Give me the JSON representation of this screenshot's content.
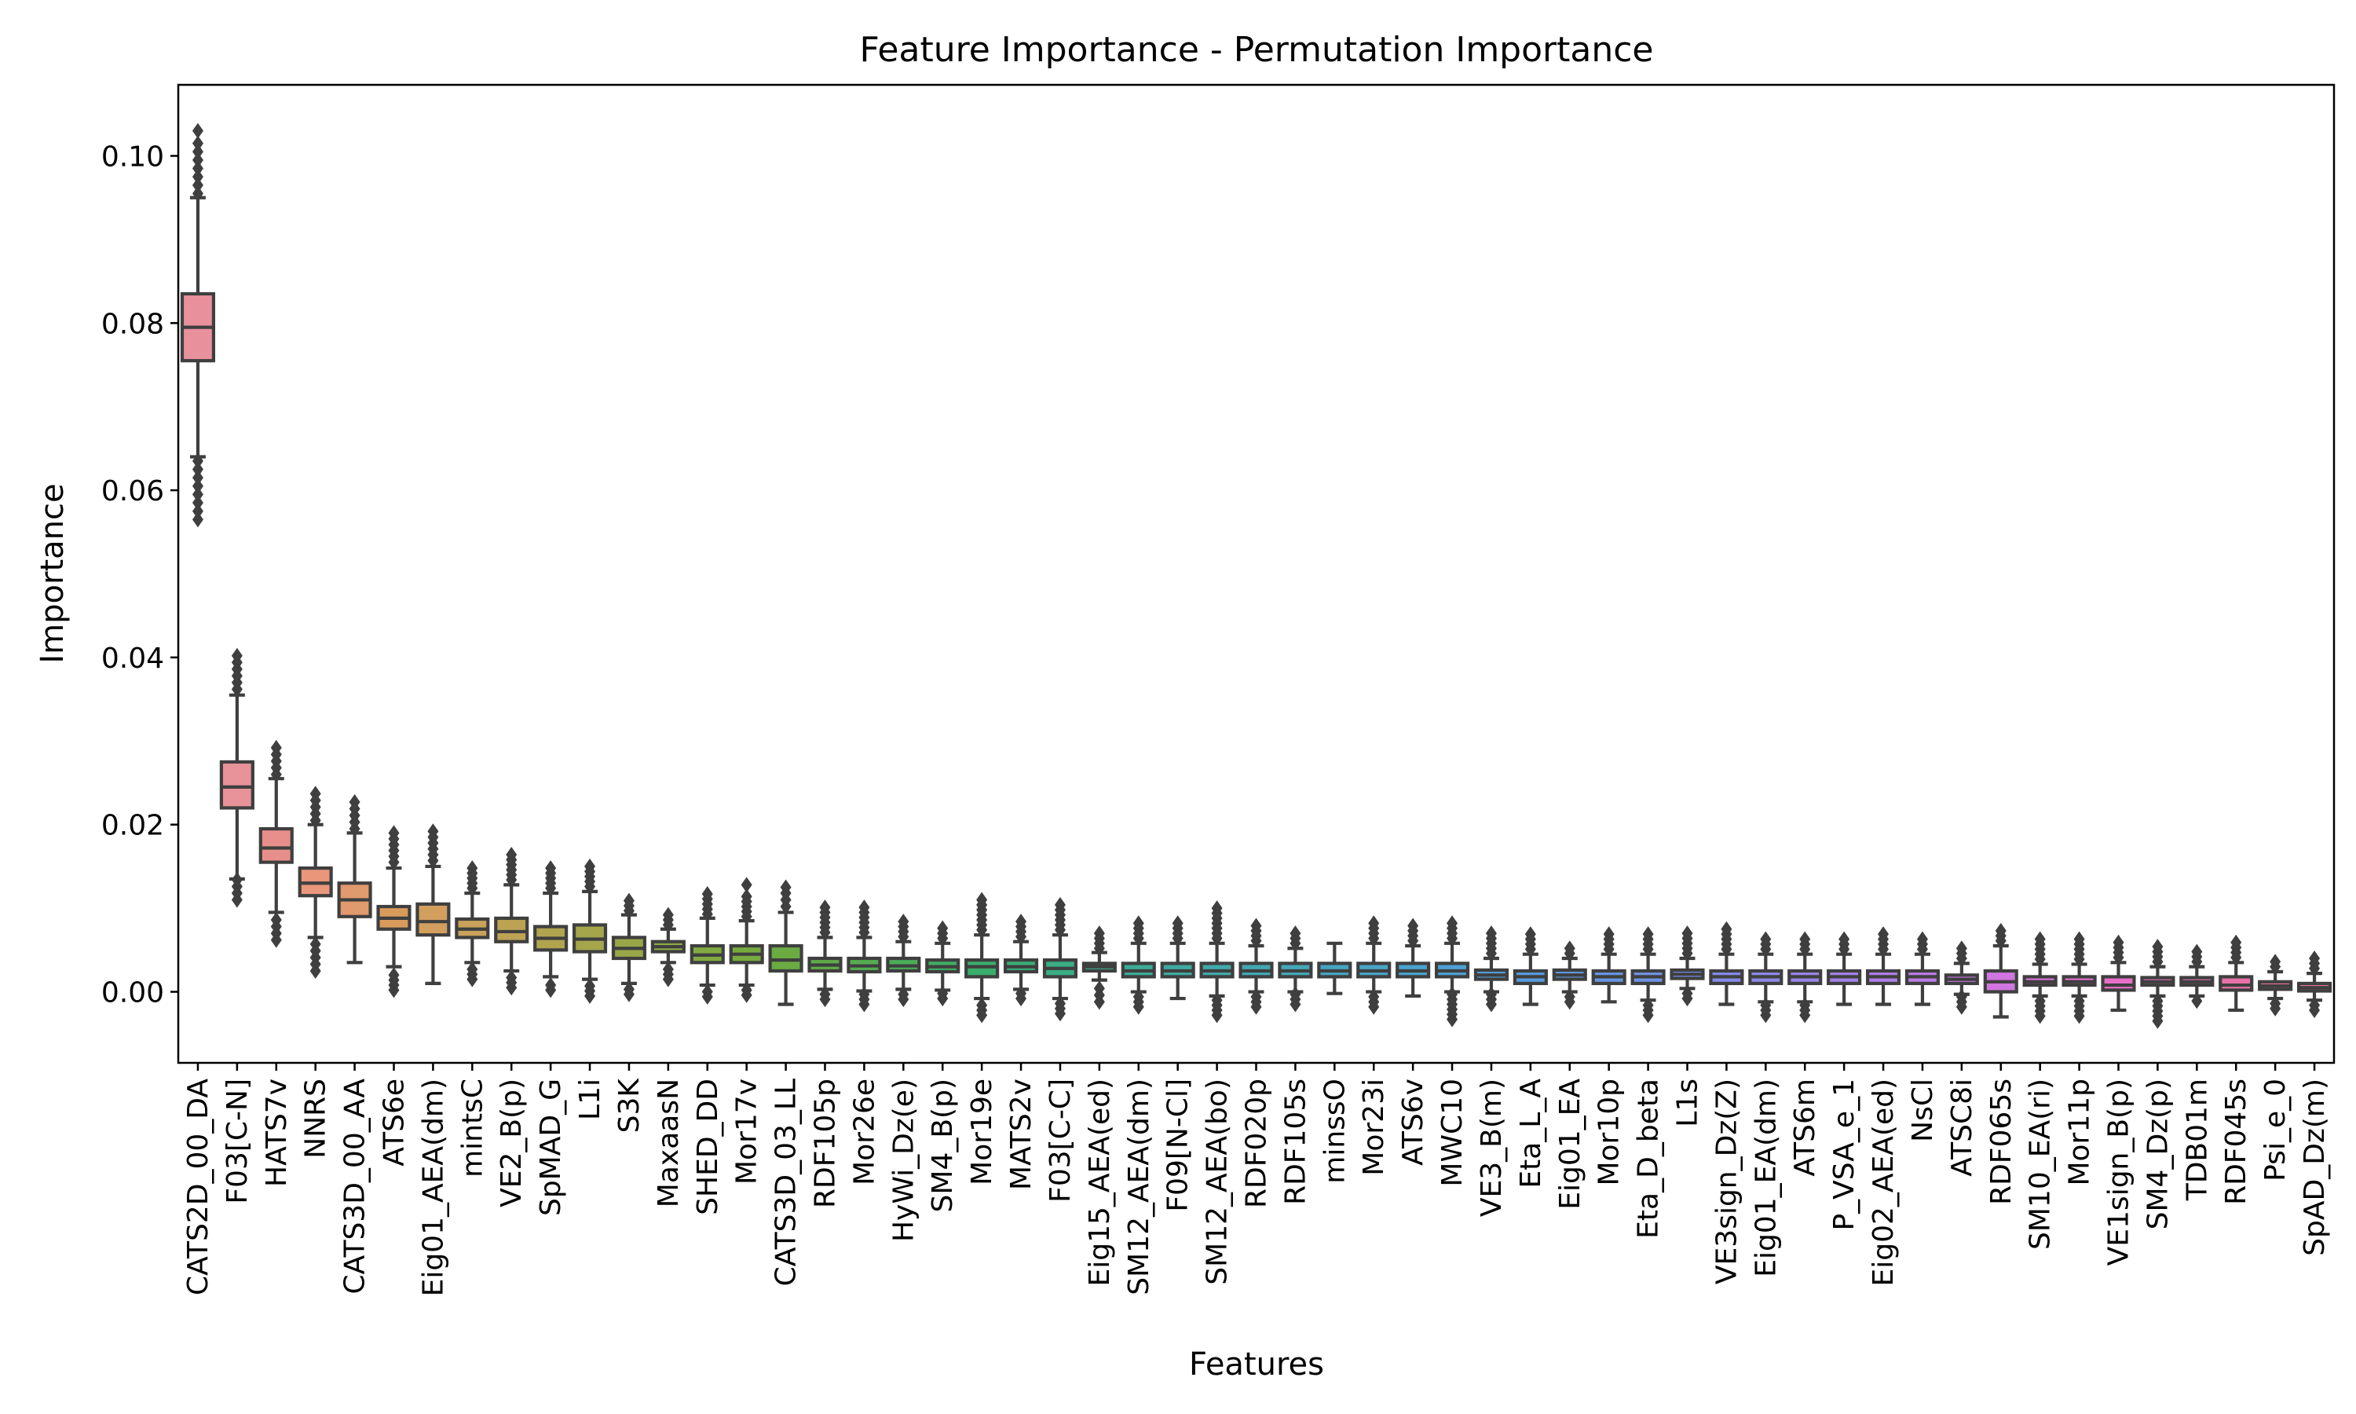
{
  "chart_data": {
    "type": "box",
    "title": "Feature Importance - Permutation Importance",
    "xlabel": "Features",
    "ylabel": "Importance",
    "ylim": [
      -0.0085,
      0.1085
    ],
    "yticks": [
      0.0,
      0.02,
      0.04,
      0.06,
      0.08,
      0.1
    ],
    "ytick_labels": [
      "0.00",
      "0.02",
      "0.04",
      "0.06",
      "0.08",
      "0.10"
    ],
    "grid": false,
    "features": [
      {
        "name": "CATS2D_00_DA",
        "q1": 0.0755,
        "median": 0.0795,
        "q3": 0.0835,
        "whislo": 0.064,
        "whishi": 0.095,
        "fliers": [
          0.0565,
          0.0575,
          0.0585,
          0.0595,
          0.0605,
          0.0615,
          0.0625,
          0.0635,
          0.0955,
          0.0965,
          0.0975,
          0.0985,
          0.0995,
          0.1005,
          0.1015,
          0.103
        ],
        "color": "#e8919c"
      },
      {
        "name": "F03[C-N]",
        "q1": 0.022,
        "median": 0.0245,
        "q3": 0.0275,
        "whislo": 0.0135,
        "whishi": 0.0355,
        "fliers": [
          0.011,
          0.0118,
          0.0126,
          0.0134,
          0.0362,
          0.037,
          0.0378,
          0.0386,
          0.0394,
          0.0402
        ],
        "color": "#e8929a"
      },
      {
        "name": "HATS7v",
        "q1": 0.0155,
        "median": 0.0172,
        "q3": 0.0195,
        "whislo": 0.0095,
        "whishi": 0.0255,
        "fliers": [
          0.0062,
          0.007,
          0.0078,
          0.0086,
          0.026,
          0.0268,
          0.0276,
          0.0284,
          0.0292
        ],
        "color": "#e98f8b"
      },
      {
        "name": "NNRS",
        "q1": 0.0115,
        "median": 0.013,
        "q3": 0.0148,
        "whislo": 0.0065,
        "whishi": 0.02,
        "fliers": [
          0.0025,
          0.0033,
          0.0041,
          0.0049,
          0.0057,
          0.0205,
          0.0213,
          0.0221,
          0.0229,
          0.0237
        ],
        "color": "#e9967a"
      },
      {
        "name": "CATS3D_00_AA",
        "q1": 0.009,
        "median": 0.011,
        "q3": 0.013,
        "whislo": 0.0035,
        "whishi": 0.019,
        "fliers": [
          0.0195,
          0.0203,
          0.0211,
          0.0219,
          0.0227
        ],
        "color": "#e19a6d"
      },
      {
        "name": "ATS6e",
        "q1": 0.0075,
        "median": 0.0088,
        "q3": 0.0102,
        "whislo": 0.003,
        "whishi": 0.0148,
        "fliers": [
          0.0002,
          0.0008,
          0.0014,
          0.002,
          0.0155,
          0.0162,
          0.0169,
          0.0176,
          0.0183,
          0.019
        ],
        "color": "#d99b5c"
      },
      {
        "name": "Eig01_AEA(dm)",
        "q1": 0.0068,
        "median": 0.0084,
        "q3": 0.0105,
        "whislo": 0.001,
        "whishi": 0.015,
        "fliers": [
          0.0157,
          0.0164,
          0.0171,
          0.0178,
          0.0185,
          0.0192
        ],
        "color": "#d29f5e"
      },
      {
        "name": "mintsC",
        "q1": 0.0065,
        "median": 0.0075,
        "q3": 0.0087,
        "whislo": 0.0035,
        "whishi": 0.0118,
        "fliers": [
          0.0015,
          0.0021,
          0.0027,
          0.0124,
          0.013,
          0.0136,
          0.0142,
          0.0148
        ],
        "color": "#c8a15a"
      },
      {
        "name": "VE2_B(p)",
        "q1": 0.006,
        "median": 0.0072,
        "q3": 0.0088,
        "whislo": 0.0025,
        "whishi": 0.0128,
        "fliers": [
          0.0005,
          0.0011,
          0.0017,
          0.0134,
          0.014,
          0.0146,
          0.0152,
          0.0158,
          0.0164
        ],
        "color": "#bca354"
      },
      {
        "name": "SpMAD_G",
        "q1": 0.005,
        "median": 0.0064,
        "q3": 0.0078,
        "whislo": 0.0018,
        "whishi": 0.0118,
        "fliers": [
          0.0002,
          0.0008,
          0.0124,
          0.013,
          0.0136,
          0.0142,
          0.0148
        ],
        "color": "#b1a44f"
      },
      {
        "name": "L1i",
        "q1": 0.0048,
        "median": 0.0063,
        "q3": 0.008,
        "whislo": 0.0015,
        "whishi": 0.012,
        "fliers": [
          -0.0005,
          0.0001,
          0.0007,
          0.0126,
          0.0132,
          0.0138,
          0.0144,
          0.015
        ],
        "color": "#a5a64b"
      },
      {
        "name": "S3K",
        "q1": 0.004,
        "median": 0.0052,
        "q3": 0.0065,
        "whislo": 0.001,
        "whishi": 0.0092,
        "fliers": [
          -0.0003,
          0.0003,
          0.0097,
          0.0103,
          0.0109
        ],
        "color": "#9aa748"
      },
      {
        "name": "MaxaasN",
        "q1": 0.0048,
        "median": 0.0054,
        "q3": 0.006,
        "whislo": 0.0035,
        "whishi": 0.0075,
        "fliers": [
          0.0015,
          0.0021,
          0.0027,
          0.008,
          0.0086,
          0.0092
        ],
        "color": "#8ea945"
      },
      {
        "name": "SHED_DD",
        "q1": 0.0035,
        "median": 0.0044,
        "q3": 0.0055,
        "whislo": 0.0008,
        "whishi": 0.0088,
        "fliers": [
          -0.0006,
          0.0,
          0.0093,
          0.0099,
          0.0105,
          0.0111,
          0.0117
        ],
        "color": "#82aa42"
      },
      {
        "name": "Mor17v",
        "q1": 0.0035,
        "median": 0.0045,
        "q3": 0.0055,
        "whislo": 0.0008,
        "whishi": 0.0085,
        "fliers": [
          -0.0004,
          0.0002,
          0.009,
          0.0096,
          0.0102,
          0.0108,
          0.0114,
          0.0128
        ],
        "color": "#76ab40"
      },
      {
        "name": "CATS3D_03_LL",
        "q1": 0.0025,
        "median": 0.0038,
        "q3": 0.0055,
        "whislo": -0.0015,
        "whishi": 0.0095,
        "fliers": [
          0.0102,
          0.011,
          0.0118,
          0.0125
        ],
        "color": "#6aab42"
      },
      {
        "name": "RDF105p",
        "q1": 0.0025,
        "median": 0.0032,
        "q3": 0.004,
        "whislo": 0.0003,
        "whishi": 0.0065,
        "fliers": [
          -0.0009,
          -0.0003,
          0.0071,
          0.0077,
          0.0083,
          0.0089,
          0.0095,
          0.0101
        ],
        "color": "#5fac48"
      },
      {
        "name": "Mor26e",
        "q1": 0.0024,
        "median": 0.0031,
        "q3": 0.004,
        "whislo": 0.0001,
        "whishi": 0.0065,
        "fliers": [
          -0.0015,
          -0.0009,
          -0.0003,
          0.0071,
          0.0077,
          0.0083,
          0.0089,
          0.0095,
          0.0101
        ],
        "color": "#54ad50"
      },
      {
        "name": "HyWi_Dz(e)",
        "q1": 0.0025,
        "median": 0.0031,
        "q3": 0.004,
        "whislo": 0.0003,
        "whishi": 0.006,
        "fliers": [
          -0.0009,
          -0.0003,
          0.0066,
          0.0072,
          0.0078,
          0.0084
        ],
        "color": "#4aad58"
      },
      {
        "name": "SM4_B(p)",
        "q1": 0.0024,
        "median": 0.003,
        "q3": 0.0038,
        "whislo": 0.0002,
        "whishi": 0.0058,
        "fliers": [
          -0.0008,
          -0.0002,
          0.0064,
          0.007,
          0.0076
        ],
        "color": "#40ae61"
      },
      {
        "name": "Mor19e",
        "q1": 0.0018,
        "median": 0.003,
        "q3": 0.0038,
        "whislo": -0.0008,
        "whishi": 0.0068,
        "fliers": [
          -0.0028,
          -0.0022,
          -0.0016,
          0.0074,
          0.008,
          0.0086,
          0.0092,
          0.0098,
          0.0104,
          0.011
        ],
        "color": "#3aae6c"
      },
      {
        "name": "MATS2v",
        "q1": 0.0024,
        "median": 0.003,
        "q3": 0.0038,
        "whislo": 0.0003,
        "whishi": 0.006,
        "fliers": [
          -0.0008,
          -0.0002,
          0.0066,
          0.0072,
          0.0078,
          0.0084
        ],
        "color": "#39ae78"
      },
      {
        "name": "F03[C-C]",
        "q1": 0.0018,
        "median": 0.0028,
        "q3": 0.0038,
        "whislo": -0.0008,
        "whishi": 0.0068,
        "fliers": [
          -0.0026,
          -0.002,
          -0.0014,
          0.0074,
          0.008,
          0.0086,
          0.0092,
          0.0098,
          0.0104
        ],
        "color": "#3aad83"
      },
      {
        "name": "Eig15_AEA(ed)",
        "q1": 0.0025,
        "median": 0.003,
        "q3": 0.0034,
        "whislo": 0.0014,
        "whishi": 0.0047,
        "fliers": [
          -0.0012,
          -0.0004,
          0.0004,
          0.0052,
          0.0058,
          0.0064,
          0.007
        ],
        "color": "#3bac8e"
      },
      {
        "name": "SM12_AEA(dm)",
        "q1": 0.0018,
        "median": 0.0025,
        "q3": 0.0034,
        "whislo": 0.0,
        "whishi": 0.0058,
        "fliers": [
          -0.0018,
          -0.0012,
          -0.0006,
          0.0064,
          0.007,
          0.0076,
          0.0082
        ],
        "color": "#3cab98"
      },
      {
        "name": "F09[N-Cl]",
        "q1": 0.0018,
        "median": 0.0025,
        "q3": 0.0034,
        "whislo": -0.0008,
        "whishi": 0.0058,
        "fliers": [
          0.0064,
          0.007,
          0.0076,
          0.0082
        ],
        "color": "#3eaaa1"
      },
      {
        "name": "SM12_AEA(bo)",
        "q1": 0.0018,
        "median": 0.0025,
        "q3": 0.0034,
        "whislo": -0.0005,
        "whishi": 0.0058,
        "fliers": [
          -0.0028,
          -0.0022,
          -0.0016,
          -0.001,
          0.0064,
          0.007,
          0.0076,
          0.0082,
          0.0088,
          0.0094,
          0.01
        ],
        "color": "#40a9aa"
      },
      {
        "name": "RDF020p",
        "q1": 0.0018,
        "median": 0.0025,
        "q3": 0.0034,
        "whislo": 0.0,
        "whishi": 0.0055,
        "fliers": [
          -0.0018,
          -0.0012,
          -0.0006,
          0.0061,
          0.0067,
          0.0073,
          0.0079
        ],
        "color": "#42a8b2"
      },
      {
        "name": "RDF105s",
        "q1": 0.0018,
        "median": 0.0025,
        "q3": 0.0034,
        "whislo": 0.0,
        "whishi": 0.0052,
        "fliers": [
          -0.0015,
          -0.0009,
          -0.0003,
          0.0058,
          0.0064,
          0.007
        ],
        "color": "#44a7b9"
      },
      {
        "name": "minssO",
        "q1": 0.0018,
        "median": 0.0025,
        "q3": 0.0034,
        "whislo": -0.0002,
        "whishi": 0.0058,
        "fliers": [],
        "color": "#46a5c0"
      },
      {
        "name": "Mor23i",
        "q1": 0.0018,
        "median": 0.0025,
        "q3": 0.0034,
        "whislo": 0.0,
        "whishi": 0.0058,
        "fliers": [
          -0.0018,
          -0.0012,
          -0.0006,
          0.0064,
          0.007,
          0.0076,
          0.0082
        ],
        "color": "#48a4c7"
      },
      {
        "name": "ATS6v",
        "q1": 0.0018,
        "median": 0.0025,
        "q3": 0.0034,
        "whislo": -0.0005,
        "whishi": 0.0055,
        "fliers": [
          0.0061,
          0.0067,
          0.0073,
          0.0079
        ],
        "color": "#4aa2cd"
      },
      {
        "name": "MWC10",
        "q1": 0.0018,
        "median": 0.0025,
        "q3": 0.0034,
        "whislo": 0.0,
        "whishi": 0.0058,
        "fliers": [
          -0.0033,
          -0.0027,
          -0.0021,
          -0.0015,
          -0.0009,
          -0.0003,
          0.0064,
          0.007,
          0.0076,
          0.0082
        ],
        "color": "#4da0d3"
      },
      {
        "name": "VE3_B(m)",
        "q1": 0.0015,
        "median": 0.002,
        "q3": 0.0026,
        "whislo": 0.0,
        "whishi": 0.004,
        "fliers": [
          -0.0015,
          -0.0009,
          -0.0003,
          0.0046,
          0.0052,
          0.0058,
          0.0064,
          0.007
        ],
        "color": "#519ed8"
      },
      {
        "name": "Eta_L_A",
        "q1": 0.001,
        "median": 0.0018,
        "q3": 0.0025,
        "whislo": -0.0015,
        "whishi": 0.0045,
        "fliers": [
          0.0051,
          0.0057,
          0.0063,
          0.0069
        ],
        "color": "#579bdc"
      },
      {
        "name": "Eig01_EA",
        "q1": 0.0015,
        "median": 0.002,
        "q3": 0.0026,
        "whislo": 0.0,
        "whishi": 0.004,
        "fliers": [
          -0.0012,
          -0.0006,
          0.0046,
          0.0052
        ],
        "color": "#5e98df"
      },
      {
        "name": "Mor10p",
        "q1": 0.001,
        "median": 0.0018,
        "q3": 0.0025,
        "whislo": -0.0012,
        "whishi": 0.0045,
        "fliers": [
          0.0051,
          0.0057,
          0.0063,
          0.0069
        ],
        "color": "#6795e2"
      },
      {
        "name": "Eta_D_beta",
        "q1": 0.001,
        "median": 0.0018,
        "q3": 0.0025,
        "whislo": -0.001,
        "whishi": 0.0045,
        "fliers": [
          -0.0028,
          -0.0022,
          -0.0016,
          0.0051,
          0.0057,
          0.0063,
          0.0069
        ],
        "color": "#7092e4"
      },
      {
        "name": "L1s",
        "q1": 0.0016,
        "median": 0.0021,
        "q3": 0.0026,
        "whislo": 0.0004,
        "whishi": 0.004,
        "fliers": [
          -0.0008,
          -0.0002,
          0.0046,
          0.0052,
          0.0058,
          0.0064,
          0.007
        ],
        "color": "#7a8fe6"
      },
      {
        "name": "VE3sign_Dz(Z)",
        "q1": 0.001,
        "median": 0.0018,
        "q3": 0.0025,
        "whislo": -0.0015,
        "whishi": 0.0045,
        "fliers": [
          0.0051,
          0.0057,
          0.0063,
          0.0069,
          0.0075
        ],
        "color": "#848be7"
      },
      {
        "name": "Eig01_EA(dm)",
        "q1": 0.001,
        "median": 0.0018,
        "q3": 0.0025,
        "whislo": -0.0012,
        "whishi": 0.0045,
        "fliers": [
          -0.0028,
          -0.0022,
          -0.0016,
          0.0051,
          0.0057,
          0.0063
        ],
        "color": "#8e88e8"
      },
      {
        "name": "ATS6m",
        "q1": 0.001,
        "median": 0.0018,
        "q3": 0.0025,
        "whislo": -0.0012,
        "whishi": 0.0045,
        "fliers": [
          -0.0028,
          -0.0022,
          -0.0016,
          0.0051,
          0.0057,
          0.0063
        ],
        "color": "#9985e8"
      },
      {
        "name": "P_VSA_e_1",
        "q1": 0.001,
        "median": 0.0018,
        "q3": 0.0025,
        "whislo": -0.0015,
        "whishi": 0.0045,
        "fliers": [
          0.0051,
          0.0057,
          0.0063
        ],
        "color": "#a482e8"
      },
      {
        "name": "Eig02_AEA(ed)",
        "q1": 0.001,
        "median": 0.0018,
        "q3": 0.0025,
        "whislo": -0.0015,
        "whishi": 0.0045,
        "fliers": [
          0.0051,
          0.0057,
          0.0063,
          0.0069
        ],
        "color": "#af7fe7"
      },
      {
        "name": "NsCl",
        "q1": 0.001,
        "median": 0.0018,
        "q3": 0.0025,
        "whislo": -0.0015,
        "whishi": 0.0045,
        "fliers": [
          0.0051,
          0.0057,
          0.0063
        ],
        "color": "#ba7ce5"
      },
      {
        "name": "ATSC8i",
        "q1": 0.001,
        "median": 0.0015,
        "q3": 0.002,
        "whislo": -0.0003,
        "whishi": 0.0034,
        "fliers": [
          -0.0018,
          -0.0012,
          -0.0006,
          0.004,
          0.0046,
          0.0052
        ],
        "color": "#c579e3"
      },
      {
        "name": "RDF065s",
        "q1": 0.0,
        "median": 0.0012,
        "q3": 0.0025,
        "whislo": -0.003,
        "whishi": 0.0055,
        "fliers": [
          0.0061,
          0.0067,
          0.0073
        ],
        "color": "#d176e0"
      },
      {
        "name": "SM10_EA(ri)",
        "q1": 0.0008,
        "median": 0.0012,
        "q3": 0.0018,
        "whislo": -0.0005,
        "whishi": 0.0033,
        "fliers": [
          -0.0029,
          -0.0023,
          -0.0017,
          -0.0011,
          0.0039,
          0.0045,
          0.0051,
          0.0057,
          0.0063
        ],
        "color": "#dc72dc"
      },
      {
        "name": "Mor11p",
        "q1": 0.0008,
        "median": 0.0012,
        "q3": 0.0018,
        "whislo": -0.0005,
        "whishi": 0.0033,
        "fliers": [
          -0.0029,
          -0.0023,
          -0.0017,
          -0.0011,
          0.0039,
          0.0045,
          0.0051,
          0.0057,
          0.0063
        ],
        "color": "#e46fd4"
      },
      {
        "name": "VE1sign_B(p)",
        "q1": 0.0002,
        "median": 0.0008,
        "q3": 0.0018,
        "whislo": -0.0022,
        "whishi": 0.0035,
        "fliers": [
          0.0041,
          0.0047,
          0.0053,
          0.0059
        ],
        "color": "#e76ec9"
      },
      {
        "name": "SM4_Dz(p)",
        "q1": 0.0008,
        "median": 0.0012,
        "q3": 0.0017,
        "whislo": -0.0005,
        "whishi": 0.003,
        "fliers": [
          -0.0035,
          -0.0029,
          -0.0023,
          -0.0017,
          -0.0011,
          0.0036,
          0.0042,
          0.0048,
          0.0054
        ],
        "color": "#e86fbe"
      },
      {
        "name": "TDB01m",
        "q1": 0.0008,
        "median": 0.0012,
        "q3": 0.0017,
        "whislo": -0.0005,
        "whishi": 0.003,
        "fliers": [
          -0.0011,
          0.0036,
          0.0042,
          0.0048
        ],
        "color": "#e870b3"
      },
      {
        "name": "RDF045s",
        "q1": 0.0002,
        "median": 0.0008,
        "q3": 0.0018,
        "whislo": -0.0022,
        "whishi": 0.0035,
        "fliers": [
          0.0041,
          0.0047,
          0.0053,
          0.0059
        ],
        "color": "#e872a8"
      },
      {
        "name": "Psi_e_0",
        "q1": 0.0003,
        "median": 0.0007,
        "q3": 0.0012,
        "whislo": -0.0008,
        "whishi": 0.0024,
        "fliers": [
          -0.002,
          -0.0014,
          0.003,
          0.0036
        ],
        "color": "#e8749e"
      },
      {
        "name": "SpAD_Dz(m)",
        "q1": 0.0001,
        "median": 0.0005,
        "q3": 0.001,
        "whislo": -0.001,
        "whishi": 0.0022,
        "fliers": [
          -0.0022,
          -0.0016,
          0.0028,
          0.0034,
          0.004
        ],
        "color": "#e87596"
      }
    ]
  }
}
